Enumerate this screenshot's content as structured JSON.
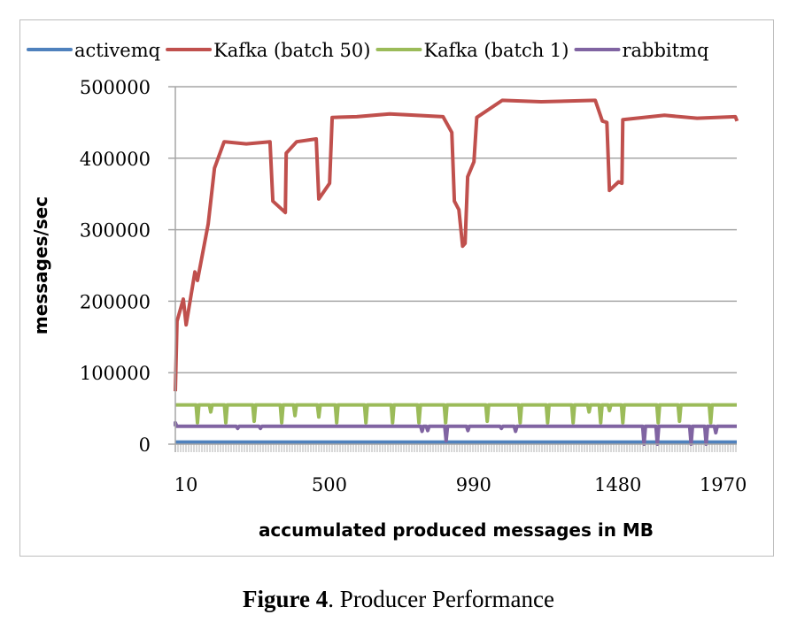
{
  "chart_data": {
    "type": "line",
    "title": "",
    "xlabel": "accumulated produced messages in MB",
    "ylabel": "messages/sec",
    "xlim": [
      10,
      1990
    ],
    "ylim": [
      0,
      500000
    ],
    "x_tick_labels": [
      "10",
      "500",
      "990",
      "1480",
      "1970"
    ],
    "x_ticks": [
      10,
      500,
      990,
      1480,
      1970
    ],
    "y_ticks": [
      0,
      100000,
      200000,
      300000,
      400000,
      500000
    ],
    "y_tick_labels": [
      "0",
      "100000",
      "200000",
      "300000",
      "400000",
      "500000"
    ],
    "grid": "horizontal",
    "legend_position": "top",
    "series": [
      {
        "name": "activemq",
        "color": "#4f81bd",
        "points": [
          [
            10,
            3000
          ],
          [
            1990,
            3000
          ]
        ]
      },
      {
        "name": "Kafka (batch 50)",
        "color": "#c0504d",
        "points": [
          [
            10,
            74000
          ],
          [
            16,
            172000
          ],
          [
            38,
            203000
          ],
          [
            48,
            167000
          ],
          [
            79,
            241000
          ],
          [
            88,
            229000
          ],
          [
            126,
            308000
          ],
          [
            148,
            386000
          ],
          [
            182,
            423000
          ],
          [
            260,
            420000
          ],
          [
            344,
            423000
          ],
          [
            354,
            340000
          ],
          [
            398,
            324000
          ],
          [
            401,
            407000
          ],
          [
            438,
            423000
          ],
          [
            507,
            427000
          ],
          [
            516,
            343000
          ],
          [
            554,
            365000
          ],
          [
            563,
            457000
          ],
          [
            650,
            458000
          ],
          [
            766,
            462000
          ],
          [
            954,
            458000
          ],
          [
            985,
            436000
          ],
          [
            994,
            340000
          ],
          [
            1010,
            328000
          ],
          [
            1023,
            277000
          ],
          [
            1032,
            281000
          ],
          [
            1041,
            374000
          ],
          [
            1063,
            395000
          ],
          [
            1073,
            457000
          ],
          [
            1163,
            481000
          ],
          [
            1300,
            479000
          ],
          [
            1491,
            481000
          ],
          [
            1516,
            452000
          ],
          [
            1532,
            450000
          ],
          [
            1541,
            355000
          ],
          [
            1573,
            367000
          ],
          [
            1585,
            365000
          ],
          [
            1588,
            454000
          ],
          [
            1735,
            460000
          ],
          [
            1850,
            456000
          ],
          [
            1985,
            458000
          ],
          [
            1991,
            452000
          ]
        ]
      },
      {
        "name": "Kafka (batch 1)",
        "color": "#9bbb59",
        "baseline": 55000,
        "dips": [
          [
            88,
            30000
          ],
          [
            135,
            45000
          ],
          [
            188,
            30000
          ],
          [
            288,
            32000
          ],
          [
            385,
            30000
          ],
          [
            432,
            40000
          ],
          [
            516,
            38000
          ],
          [
            579,
            30000
          ],
          [
            682,
            30000
          ],
          [
            776,
            30000
          ],
          [
            869,
            30000
          ],
          [
            963,
            30000
          ],
          [
            1110,
            32000
          ],
          [
            1226,
            30000
          ],
          [
            1323,
            30000
          ],
          [
            1413,
            30000
          ],
          [
            1469,
            45000
          ],
          [
            1510,
            30000
          ],
          [
            1541,
            47000
          ],
          [
            1588,
            30000
          ],
          [
            1713,
            30000
          ],
          [
            1788,
            32000
          ],
          [
            1898,
            30000
          ]
        ]
      },
      {
        "name": "rabbitmq",
        "color": "#8064a2",
        "baseline": 25000,
        "dips": [
          [
            10,
            30000
          ],
          [
            230,
            22000
          ],
          [
            310,
            22000
          ],
          [
            880,
            18000
          ],
          [
            900,
            19000
          ],
          [
            965,
            5000
          ],
          [
            1042,
            19000
          ],
          [
            1160,
            22000
          ],
          [
            1210,
            18000
          ],
          [
            1663,
            0
          ],
          [
            1710,
            0
          ],
          [
            1829,
            0
          ],
          [
            1882,
            0
          ],
          [
            1916,
            16000
          ]
        ]
      }
    ]
  },
  "caption": {
    "label": "Figure 4",
    "text": ". Producer Performance"
  }
}
